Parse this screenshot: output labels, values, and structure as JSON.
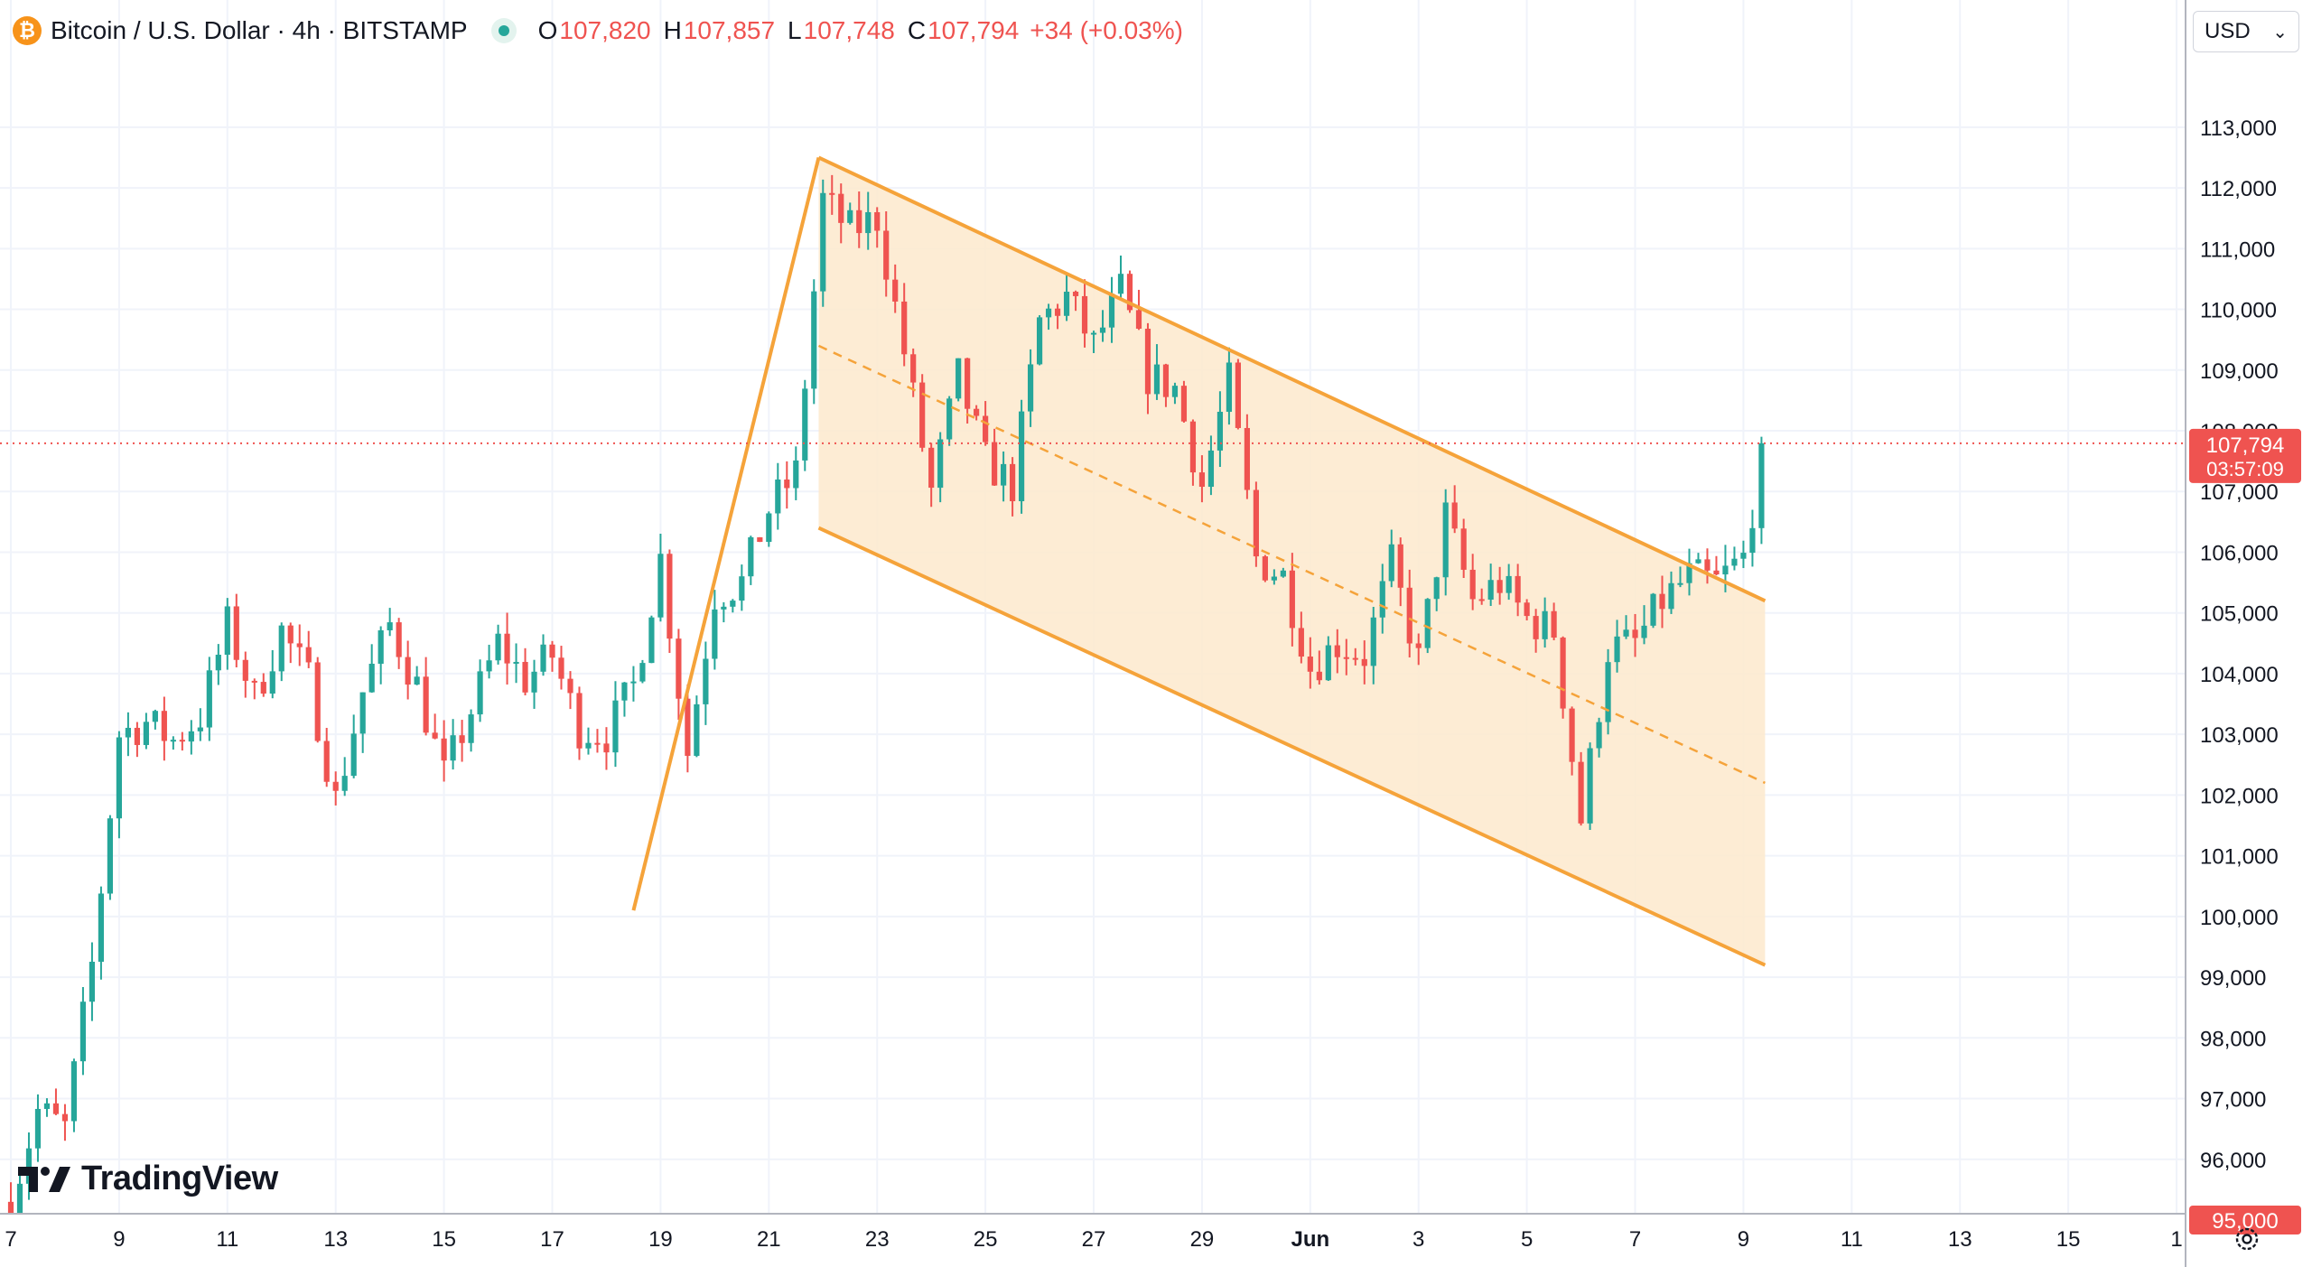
{
  "legend": {
    "symbol_name": "Bitcoin / U.S. Dollar · 4h · BITSTAMP",
    "symbol_icon": "bitcoin-icon",
    "open_label": "O",
    "open_value": "107,820",
    "high_label": "H",
    "high_value": "107,857",
    "low_label": "L",
    "low_value": "107,748",
    "close_label": "C",
    "close_value": "107,794",
    "change": "+34 (+0.03%)"
  },
  "currency": {
    "selected": "USD"
  },
  "last_price": {
    "value": "107,794",
    "countdown": "03:57:09"
  },
  "alert_price": {
    "value": "95,000"
  },
  "logo": {
    "text": "TradingView"
  },
  "colors": {
    "up": "#26a69a",
    "down": "#ef5350",
    "channel": "#f5a33a",
    "channel_fill": "#fde9cc",
    "grid": "#f0f3fa",
    "text": "#131722"
  },
  "chart_data": {
    "type": "candlestick",
    "symbol": "Bitcoin / U.S. Dollar",
    "interval": "4h",
    "exchange": "BITSTAMP",
    "ylim": [
      94700,
      114500
    ],
    "y_ticks": [
      "96,000",
      "97,000",
      "98,000",
      "99,000",
      "100,000",
      "101,000",
      "102,000",
      "103,000",
      "104,000",
      "105,000",
      "106,000",
      "107,000",
      "108,000",
      "109,000",
      "110,000",
      "111,000",
      "112,000",
      "113,000"
    ],
    "x_ticks": [
      "7",
      "9",
      "11",
      "13",
      "15",
      "17",
      "19",
      "21",
      "23",
      "25",
      "27",
      "29",
      "Jun",
      "3",
      "5",
      "7",
      "9",
      "11",
      "13",
      "15",
      "1"
    ],
    "x_tick_days": [
      7,
      9,
      11,
      13,
      15,
      17,
      19,
      21,
      23,
      25,
      27,
      29,
      31,
      33,
      35,
      37,
      39,
      41,
      43,
      45,
      47
    ],
    "x_start_day": 7.0,
    "x_end_day": 48.0,
    "last_candle_day": 39.38,
    "close_path": [
      [
        7.0,
        95300
      ],
      [
        7.5,
        96800
      ],
      [
        8.0,
        96500
      ],
      [
        8.5,
        99200
      ],
      [
        9.0,
        103000
      ],
      [
        9.5,
        103200
      ],
      [
        10.0,
        102900
      ],
      [
        10.5,
        103300
      ],
      [
        11.0,
        104800
      ],
      [
        11.5,
        103600
      ],
      [
        12.0,
        104700
      ],
      [
        12.5,
        103900
      ],
      [
        13.0,
        101900
      ],
      [
        13.5,
        103700
      ],
      [
        14.0,
        104800
      ],
      [
        14.5,
        103800
      ],
      [
        15.0,
        102300
      ],
      [
        15.5,
        103400
      ],
      [
        16.0,
        104500
      ],
      [
        16.5,
        103900
      ],
      [
        17.0,
        104300
      ],
      [
        17.5,
        103100
      ],
      [
        18.0,
        103000
      ],
      [
        18.5,
        103800
      ],
      [
        19.0,
        105900
      ],
      [
        19.5,
        102700
      ],
      [
        20.0,
        105300
      ],
      [
        20.5,
        105500
      ],
      [
        21.0,
        106700
      ],
      [
        21.5,
        107300
      ],
      [
        22.0,
        111800
      ],
      [
        22.5,
        111300
      ],
      [
        23.0,
        111500
      ],
      [
        23.5,
        109300
      ],
      [
        24.0,
        107000
      ],
      [
        24.5,
        108900
      ],
      [
        25.0,
        107500
      ],
      [
        25.5,
        107100
      ],
      [
        26.0,
        109800
      ],
      [
        26.5,
        110200
      ],
      [
        27.0,
        109400
      ],
      [
        27.5,
        110300
      ],
      [
        28.0,
        108900
      ],
      [
        28.5,
        108700
      ],
      [
        29.0,
        107100
      ],
      [
        29.5,
        108800
      ],
      [
        30.0,
        105900
      ],
      [
        30.5,
        105600
      ],
      [
        31.0,
        104100
      ],
      [
        31.5,
        104500
      ],
      [
        32.0,
        104300
      ],
      [
        32.5,
        105800
      ],
      [
        33.0,
        104200
      ],
      [
        33.5,
        106600
      ],
      [
        34.0,
        105200
      ],
      [
        34.5,
        105500
      ],
      [
        35.0,
        104900
      ],
      [
        35.5,
        104700
      ],
      [
        36.0,
        101600
      ],
      [
        36.5,
        104400
      ],
      [
        37.0,
        104500
      ],
      [
        37.5,
        105200
      ],
      [
        38.0,
        105600
      ],
      [
        38.5,
        105500
      ],
      [
        39.0,
        105900
      ],
      [
        39.38,
        107794
      ]
    ],
    "channel": {
      "upper": [
        [
          21.92,
          112500
        ],
        [
          39.4,
          105200
        ]
      ],
      "lower": [
        [
          21.92,
          106400
        ],
        [
          39.4,
          99200
        ]
      ],
      "midline": [
        [
          21.92,
          109400
        ],
        [
          39.4,
          102200
        ]
      ]
    },
    "flagpole": [
      [
        18.5,
        100100
      ],
      [
        21.92,
        112500
      ]
    ],
    "last_price_line": 107794,
    "alert_line": 95000
  }
}
